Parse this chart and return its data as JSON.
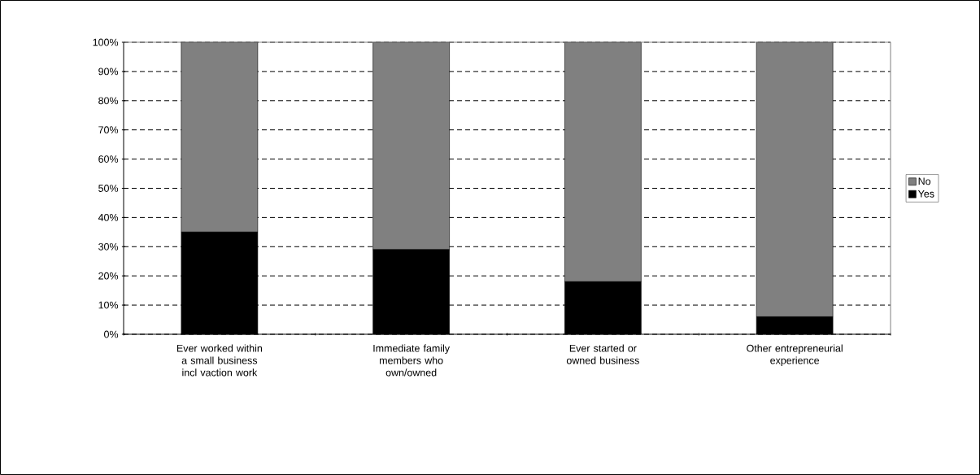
{
  "chart_data": {
    "type": "bar",
    "stacked": true,
    "categories": [
      "Ever worked within a small business incl vaction work",
      "Immediate family members who own/owned",
      "Ever started or owned business",
      "Other entrepreneurial experience"
    ],
    "series": [
      {
        "name": "Yes",
        "color": "#000000",
        "values": [
          35,
          29,
          18,
          6
        ]
      },
      {
        "name": "No",
        "color": "#808080",
        "values": [
          65,
          71,
          82,
          94
        ]
      }
    ],
    "ylim": [
      0,
      100
    ],
    "yticks": [
      {
        "value": 0,
        "label": "0%"
      },
      {
        "value": 10,
        "label": "10%"
      },
      {
        "value": 20,
        "label": "20%"
      },
      {
        "value": 30,
        "label": "30%"
      },
      {
        "value": 40,
        "label": "40%"
      },
      {
        "value": 50,
        "label": "50%"
      },
      {
        "value": 60,
        "label": "60%"
      },
      {
        "value": 70,
        "label": "70%"
      },
      {
        "value": 80,
        "label": "80%"
      },
      {
        "value": 90,
        "label": "90%"
      },
      {
        "value": 100,
        "label": "100%"
      }
    ],
    "grid": "y",
    "legend": "right"
  }
}
